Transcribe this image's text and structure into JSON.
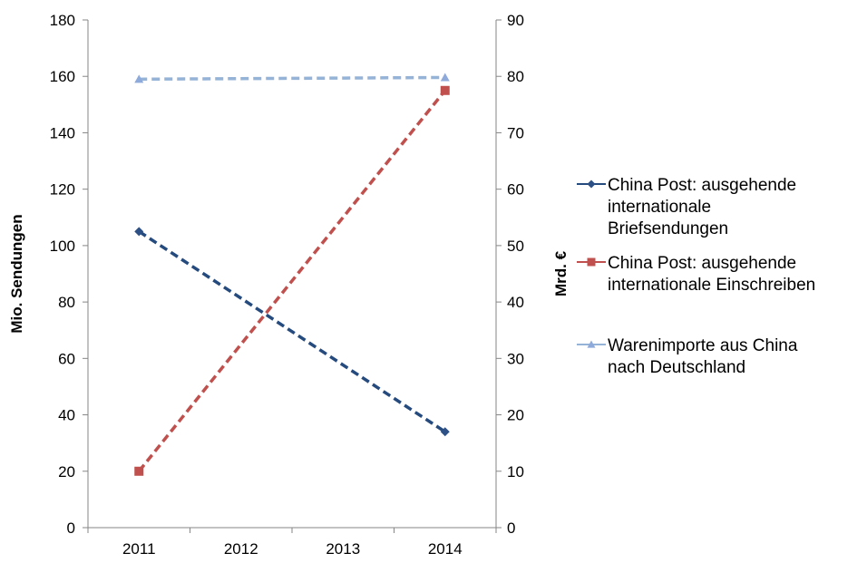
{
  "chart_data": {
    "type": "line",
    "categories": [
      "2011",
      "2012",
      "2013",
      "2014"
    ],
    "ylabel": "Mio. Sendungen",
    "y2label": "Mrd. €",
    "ylim": [
      0,
      180
    ],
    "y2lim": [
      0,
      90
    ],
    "yticks": [
      "0",
      "20",
      "40",
      "60",
      "80",
      "100",
      "120",
      "140",
      "160",
      "180"
    ],
    "y2ticks": [
      "0",
      "10",
      "20",
      "30",
      "40",
      "50",
      "60",
      "70",
      "80",
      "90"
    ],
    "grid": false,
    "legend_position": "right",
    "series": [
      {
        "name": "China Post: ausgehende internationale Briefsendungen",
        "legend_lines": [
          "China Post: ausgehende",
          "internationale",
          "Briefsendungen"
        ],
        "axis": "left",
        "x": [
          "2011",
          "2014"
        ],
        "values": [
          105,
          34
        ],
        "color": "#254a7d",
        "marker": "diamond",
        "marker_color": "#2d5186"
      },
      {
        "name": "China Post: ausgehende internationale Einschreiben",
        "legend_lines": [
          "China Post: ausgehende",
          "internationale Einschreiben"
        ],
        "axis": "left",
        "x": [
          "2011",
          "2014"
        ],
        "values": [
          20,
          155
        ],
        "color": "#c0504d",
        "marker": "square",
        "marker_color": "#c0504d"
      },
      {
        "name": "Warenimporte aus China nach Deutschland",
        "legend_lines": [
          "Warenimporte aus China",
          "nach Deutschland"
        ],
        "axis": "right",
        "x": [
          "2011",
          "2014"
        ],
        "values": [
          79.5,
          79.8
        ],
        "color": "#95b3d7",
        "marker": "triangle",
        "marker_color": "#8eaadb"
      }
    ]
  }
}
